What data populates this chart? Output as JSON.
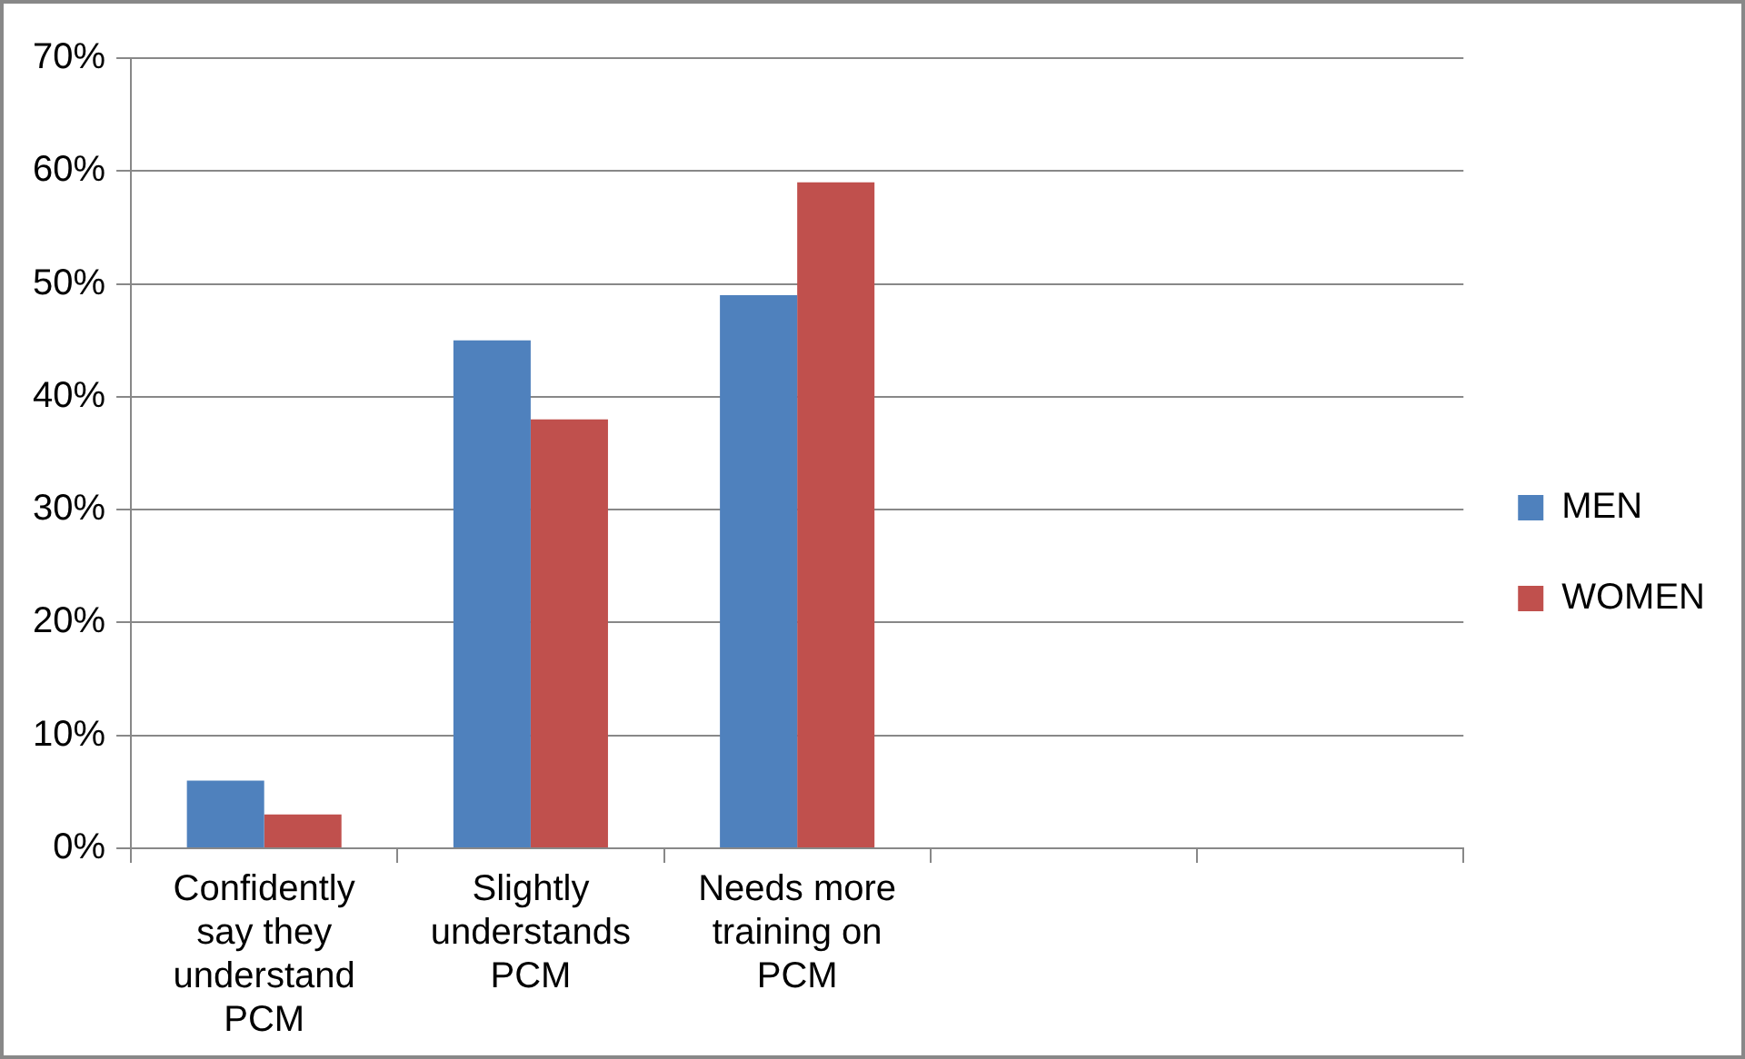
{
  "chart_data": {
    "type": "bar",
    "categories": [
      "Confidently say they understand PCM",
      "Slightly understands PCM",
      "Needs more training on PCM",
      null,
      null
    ],
    "series": [
      {
        "name": "MEN",
        "color": "#4f81bd",
        "values": [
          6,
          45,
          49,
          null,
          null
        ]
      },
      {
        "name": "WOMEN",
        "color": "#c0504d",
        "values": [
          3,
          38,
          59,
          null,
          null
        ]
      }
    ],
    "ylim": [
      0,
      70
    ],
    "yticks": [
      {
        "value": 0,
        "label": "0%"
      },
      {
        "value": 10,
        "label": "10%"
      },
      {
        "value": 20,
        "label": "20%"
      },
      {
        "value": 30,
        "label": "30%"
      },
      {
        "value": 40,
        "label": "40%"
      },
      {
        "value": 50,
        "label": "50%"
      },
      {
        "value": 60,
        "label": "60%"
      },
      {
        "value": 70,
        "label": "70%"
      }
    ],
    "grid": "y",
    "legend": "right"
  }
}
